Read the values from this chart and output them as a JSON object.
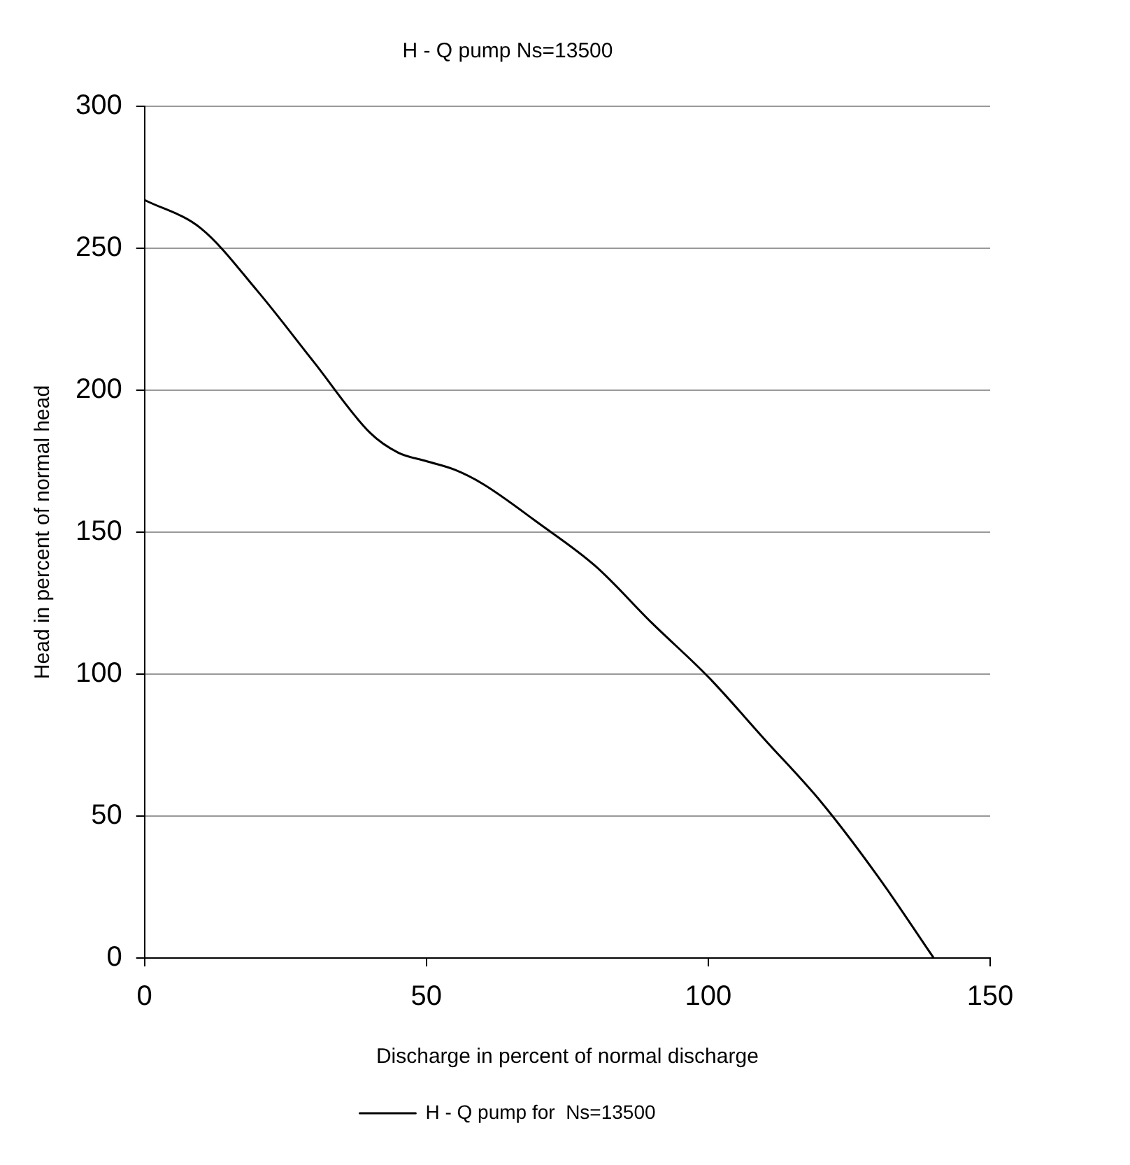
{
  "chart_data": {
    "type": "line",
    "title": "H - Q pump Ns=13500",
    "xlabel": "Discharge in percent of normal discharge",
    "ylabel": "Head in percent of normal head",
    "x": [
      0,
      10,
      20,
      30,
      40,
      45,
      50,
      55,
      60,
      70,
      80,
      90,
      100,
      110,
      120,
      130,
      140
    ],
    "series": [
      {
        "name": "H - Q pump for  Ns=13500",
        "color": "#000000",
        "values": [
          267,
          257,
          235,
          210,
          185,
          178,
          175,
          172,
          167,
          153,
          138,
          118,
          99,
          77,
          55,
          29,
          0
        ]
      }
    ],
    "xlim": [
      0,
      150
    ],
    "xticks": [
      0,
      50,
      100,
      150
    ],
    "ylim": [
      0,
      300
    ],
    "yticks": [
      0,
      50,
      100,
      150,
      200,
      250,
      300
    ],
    "grid": "y",
    "legend": "bottom",
    "marker": "none",
    "line_style": "solid"
  }
}
